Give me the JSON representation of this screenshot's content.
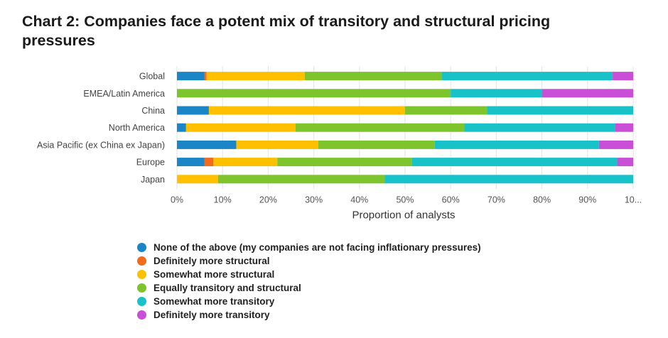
{
  "title": "Chart 2: Companies face a potent mix of transitory and structural pricing pressures",
  "chart_data": {
    "type": "bar",
    "orientation": "horizontal",
    "stacked": true,
    "categories": [
      "Global",
      "EMEA/Latin America",
      "China",
      "North America",
      "Asia Pacific (ex China ex Japan)",
      "Europe",
      "Japan"
    ],
    "series": [
      {
        "name": "None of the above (my companies are not facing inflationary pressures)",
        "color": "#1a85c7",
        "values": [
          6,
          0,
          7,
          2,
          13,
          6,
          0
        ]
      },
      {
        "name": "Definitely more structural",
        "color": "#f26b1d",
        "values": [
          0.5,
          0,
          0,
          0,
          0,
          2,
          0
        ]
      },
      {
        "name": "Somewhat more structural",
        "color": "#ffc000",
        "values": [
          21.5,
          0,
          43,
          24,
          18,
          14,
          9
        ]
      },
      {
        "name": "Equally transitory and structural",
        "color": "#7ec42c",
        "values": [
          30,
          60,
          18,
          37,
          25.5,
          29.5,
          36.5
        ]
      },
      {
        "name": "Somewhat more transitory",
        "color": "#17c2c9",
        "values": [
          37.5,
          20,
          32,
          33,
          36,
          45,
          54.5
        ]
      },
      {
        "name": "Definitely more transitory",
        "color": "#c94fd6",
        "values": [
          4.5,
          20,
          0,
          4,
          7.5,
          3.5,
          0
        ]
      }
    ],
    "xlabel": "Proportion of analysts",
    "xlim": [
      0,
      100
    ],
    "xticks": [
      "0%",
      "10%",
      "20%",
      "30%",
      "40%",
      "50%",
      "60%",
      "70%",
      "80%",
      "90%",
      "10..."
    ],
    "grid": "vertical",
    "legend": "bottom"
  }
}
